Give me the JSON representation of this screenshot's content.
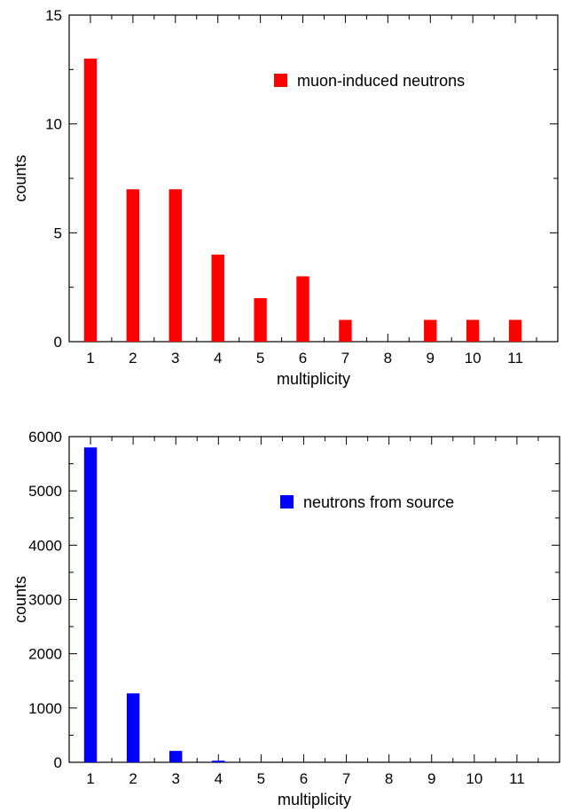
{
  "chart_data": [
    {
      "type": "bar",
      "categories": [
        "1",
        "2",
        "3",
        "4",
        "5",
        "6",
        "7",
        "8",
        "9",
        "10",
        "11"
      ],
      "series": [
        {
          "name": "muon-induced neutrons",
          "color": "#ff0000",
          "values": [
            13,
            7,
            7,
            4,
            2,
            3,
            1,
            0,
            1,
            1,
            1
          ]
        }
      ],
      "xlabel": "multiplicity",
      "ylabel": "counts",
      "ylim": [
        0,
        15
      ],
      "yticks": [
        "0",
        "5",
        "10",
        "15"
      ],
      "legend_position": "top-right",
      "grid": false
    },
    {
      "type": "bar",
      "categories": [
        "1",
        "2",
        "3",
        "4",
        "5",
        "6",
        "7",
        "8",
        "9",
        "10",
        "11"
      ],
      "series": [
        {
          "name": "neutrons from source",
          "color": "#0000ff",
          "values": [
            5800,
            1270,
            210,
            30,
            0,
            0,
            0,
            0,
            0,
            0,
            0
          ]
        }
      ],
      "xlabel": "multiplicity",
      "ylabel": "counts",
      "ylim": [
        0,
        6000
      ],
      "yticks": [
        "0",
        "1000",
        "2000",
        "3000",
        "4000",
        "5000",
        "6000"
      ],
      "legend_position": "top-right",
      "grid": false
    }
  ]
}
